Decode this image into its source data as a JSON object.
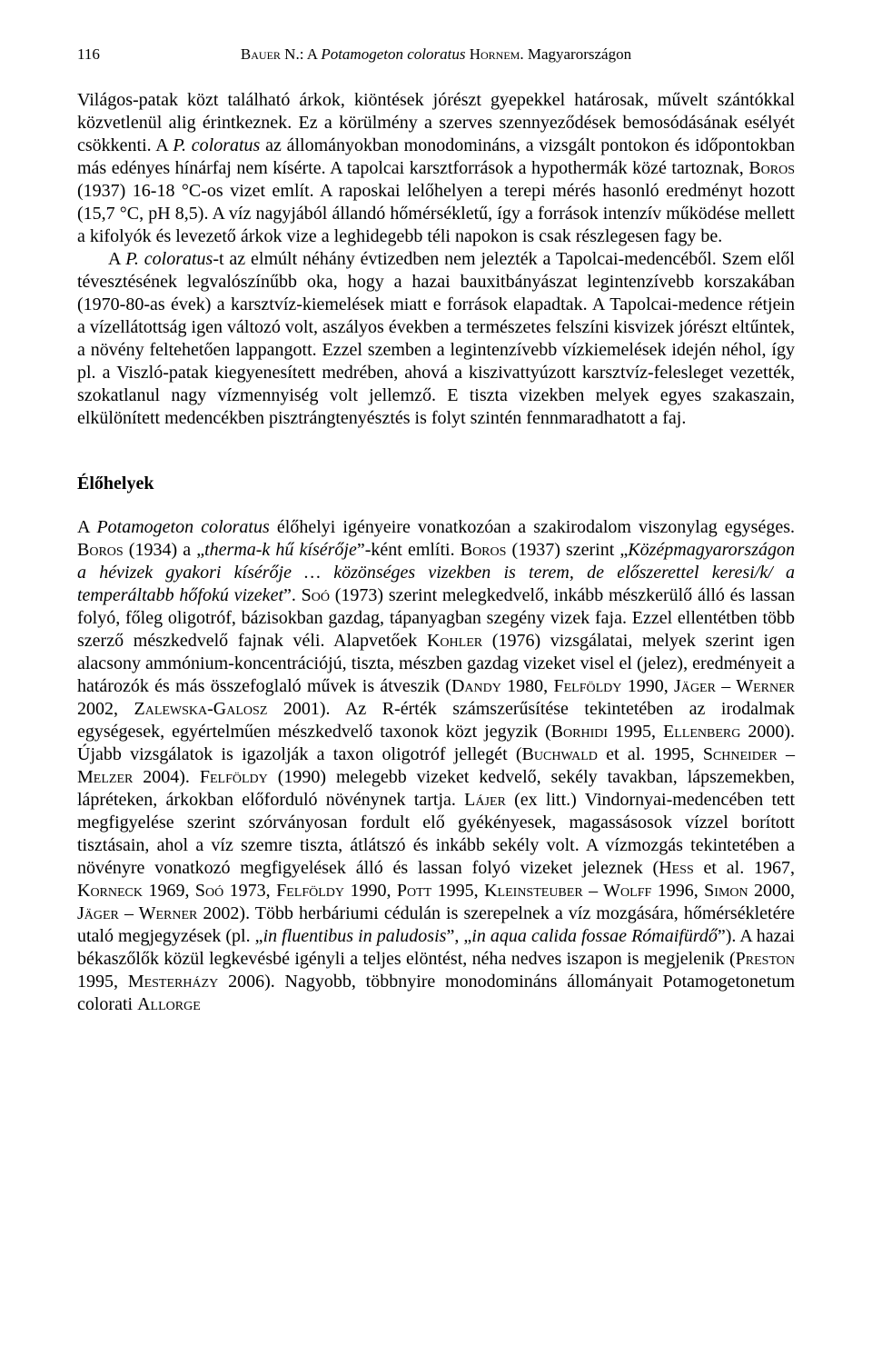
{
  "header": {
    "page_number": "116",
    "running_title_author_sc": "Bauer",
    "running_title_after_author": " N.: A ",
    "running_title_species_italic": "Potamogeton coloratus",
    "running_title_auth_sc2": " Hornem.",
    "running_title_tail": " Magyarországon"
  },
  "p1": {
    "t1": "Világos-patak közt található árkok, kiöntések jórészt gyepekkel határosak, művelt szántókkal közvetlenül alig érintkeznek. Ez a körülmény a szerves szennyeződések bemosódásának esélyét csökkenti. A ",
    "i1": "P. coloratus",
    "t2": " az állományokban monodomináns, a vizsgált pontokon és időpontokban más edényes hínárfaj nem kísérte. A tapolcai karsztforrások a hypothermák közé tartoznak, ",
    "sc1": "Boros",
    "t3": " (1937) 16-18 °C-os vizet említ. A raposkai lelőhelyen a terepi mérés hasonló eredményt hozott (15,7 °C, pH 8,5). A víz nagyjából állandó hőmérsékletű, így a források intenzív működése mellett a kifolyók és levezető árkok vize a leghidegebb téli napokon is csak részlegesen fagy be."
  },
  "p2": {
    "t1": "A ",
    "i1": "P. coloratus",
    "t2": "-t az elmúlt néhány évtizedben nem jelezték a Tapolcai-medencéből. Szem elől tévesztésének legvalószínűbb oka, hogy a hazai bauxitbányászat legintenzívebb korszakában (1970-80-as évek) a karsztvíz-kiemelések miatt e források elapadtak. A Tapolcai-medence rétjein a vízellátottság igen változó volt, aszályos években a természetes felszíni kisvizek jórészt eltűntek, a növény feltehetően lappangott. Ezzel szemben a legintenzívebb vízkiemelések idején néhol, így pl. a Viszló-patak kiegyenesített medrében, ahová a kiszivattyúzott karsztvíz-felesleget vezették, szokatlanul nagy vízmennyiség volt jellemző. E tiszta vizekben melyek egyes szakaszain, elkülönített medencékben pisztrángtenyésztés is folyt szintén fennmaradhatott a faj."
  },
  "section_heading": "Élőhelyek",
  "p3": {
    "t1": "A ",
    "i1": "Potamogeton coloratus",
    "t2": " élőhelyi igényeire vonatkozóan a szakirodalom viszonylag egységes. ",
    "sc1": "Boros",
    "t3": " (1934) a „",
    "i2": "therma-k hű kísérője",
    "t4": "”-ként említi. ",
    "sc2": "Boros",
    "t5": " (1937) szerint „",
    "i3": "Középmagyarországon a hévizek gyakori kísérője … közönséges vizekben is terem, de előszerettel keresi/k/ a temperáltabb hőfokú vizeket",
    "t6": "”. ",
    "sc3": "Soó",
    "t7": " (1973) szerint melegkedvelő, inkább mészkerülő álló és lassan folyó, főleg oligotróf, bázisokban gazdag, tápanyagban szegény vizek faja. Ezzel ellentétben több szerző mészkedvelő fajnak véli. Alapvetőek ",
    "sc4": "Kohler",
    "t8": " (1976) vizsgálatai, melyek szerint igen alacsony ammónium-koncentrációjú, tiszta, mészben gazdag vizeket visel el (jelez), eredményeit a határozók és más összefoglaló művek is átveszik (",
    "sc5": "Dandy",
    "t9": " 1980, ",
    "sc6": "Felföldy",
    "t10": " 1990, ",
    "sc7": "Jäger – Werner",
    "t11": " 2002, ",
    "sc8": "Zalewska-Galosz",
    "t12": " 2001). Az R-érték számszerűsítése tekintetében az irodalmak egységesek, egyértelműen mészkedvelő taxonok közt jegyzik (",
    "sc9": "Borhidi",
    "t13": " 1995, ",
    "sc10": "Ellenberg",
    "t14": " 2000). Újabb vizsgálatok is igazolják a taxon oligotróf jellegét (",
    "sc11": "Buchwald",
    "t15": " et al. 1995, ",
    "sc12": "Schneider – Melzer",
    "t16": " 2004). ",
    "sc13": "Felföldy",
    "t17": " (1990) melegebb vizeket kedvelő, sekély tavakban, lápszemekben, lápréteken, árkokban előforduló növénynek tartja. ",
    "sc14": "Lájer",
    "t18": " (ex litt.) Vindornyai-medencében tett megfigyelése szerint szórványosan fordult elő gyékényesek, magassásosok vízzel borított tisztásain, ahol a víz szemre tiszta, átlátszó és inkább sekély volt. A vízmozgás tekintetében a növényre vonatkozó megfigyelések álló és lassan folyó vizeket jeleznek (",
    "sc15": "Hess",
    "t19": " et al. 1967, ",
    "sc16": "Korneck",
    "t20": " 1969, ",
    "sc17": "Soó",
    "t21": " 1973, ",
    "sc18": "Felföldy",
    "t22": " 1990, ",
    "sc19": "Pott",
    "t23": " 1995, ",
    "sc20": "Kleinsteuber – Wolff",
    "t24": " 1996, ",
    "sc21": "Simon",
    "t25": " 2000, ",
    "sc22": "Jäger – Werner",
    "t26": " 2002). Több herbáriumi cédulán is szerepelnek a víz mozgására, hőmérsékletére utaló megjegyzések (pl. „",
    "i4": "in fluentibus in paludosis",
    "t27": "”, „",
    "i5": "in aqua calida fossae Rómaifürdő",
    "t28": "”). A hazai békaszőlők közül legkevésbé igényli a teljes elöntést, néha nedves iszapon is megjelenik (",
    "sc23": "Preston",
    "t29": " 1995, ",
    "sc24": "Mesterházy",
    "t30": " 2006). Nagyobb, többnyire monodomináns állományait Potamogetonetum colorati ",
    "sc25": "Allorge"
  }
}
